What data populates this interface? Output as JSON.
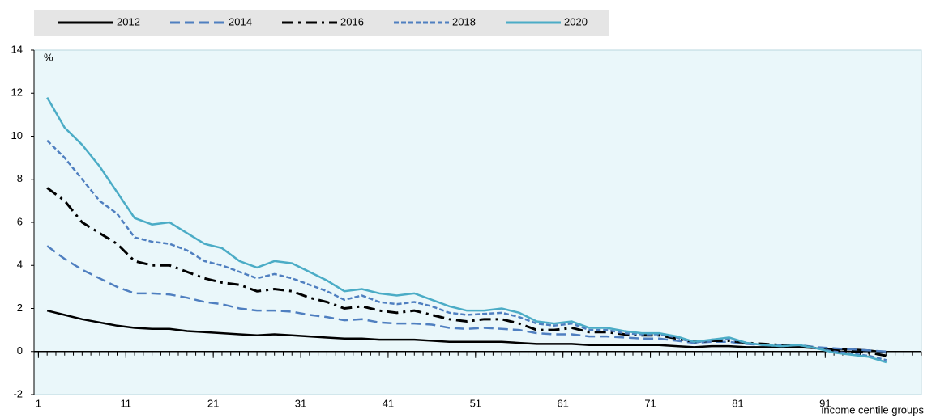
{
  "chart_data": {
    "type": "line",
    "x_label": "income centile groups",
    "y_label": "%",
    "legend": "top-left",
    "grid": false,
    "xlim": [
      0.5,
      102
    ],
    "ylim": [
      -2,
      14
    ],
    "xticks": [
      1,
      11,
      21,
      31,
      41,
      51,
      61,
      71,
      81,
      91
    ],
    "yticks": [
      -2,
      0,
      2,
      4,
      6,
      8,
      10,
      12,
      14
    ],
    "x": [
      2,
      4,
      6,
      8,
      10,
      12,
      14,
      16,
      18,
      20,
      22,
      24,
      26,
      28,
      30,
      32,
      34,
      36,
      38,
      40,
      42,
      44,
      46,
      48,
      50,
      52,
      54,
      56,
      58,
      60,
      62,
      64,
      66,
      68,
      70,
      72,
      74,
      76,
      78,
      80,
      82,
      84,
      86,
      88,
      90,
      92,
      94,
      96,
      98
    ],
    "series": [
      {
        "name": "2012",
        "color": "#000000",
        "dash": "solid",
        "values": [
          1.9,
          1.7,
          1.5,
          1.35,
          1.2,
          1.1,
          1.05,
          1.05,
          0.95,
          0.9,
          0.85,
          0.8,
          0.75,
          0.8,
          0.75,
          0.7,
          0.65,
          0.6,
          0.6,
          0.55,
          0.55,
          0.55,
          0.5,
          0.45,
          0.45,
          0.45,
          0.45,
          0.4,
          0.35,
          0.35,
          0.35,
          0.3,
          0.3,
          0.3,
          0.3,
          0.3,
          0.25,
          0.2,
          0.25,
          0.25,
          0.2,
          0.2,
          0.2,
          0.2,
          0.15,
          0.1,
          0.1,
          0.05,
          -0.05
        ]
      },
      {
        "name": "2014",
        "color": "#4f7fc0",
        "dash": "dashed",
        "values": [
          4.9,
          4.3,
          3.8,
          3.4,
          3.0,
          2.7,
          2.7,
          2.65,
          2.5,
          2.3,
          2.2,
          2.0,
          1.9,
          1.9,
          1.85,
          1.7,
          1.6,
          1.45,
          1.5,
          1.35,
          1.3,
          1.3,
          1.25,
          1.1,
          1.05,
          1.1,
          1.05,
          1.0,
          0.85,
          0.8,
          0.8,
          0.7,
          0.7,
          0.65,
          0.6,
          0.6,
          0.5,
          0.4,
          0.45,
          0.45,
          0.35,
          0.3,
          0.3,
          0.3,
          0.2,
          0.15,
          0.1,
          0.05,
          0.0
        ]
      },
      {
        "name": "2016",
        "color": "#000000",
        "dash": "dashdot",
        "values": [
          7.6,
          7.0,
          6.0,
          5.5,
          5.0,
          4.2,
          4.0,
          4.0,
          3.7,
          3.4,
          3.2,
          3.1,
          2.8,
          2.9,
          2.8,
          2.5,
          2.3,
          2.0,
          2.1,
          1.9,
          1.8,
          1.9,
          1.7,
          1.5,
          1.4,
          1.5,
          1.5,
          1.3,
          1.0,
          1.0,
          1.1,
          0.9,
          0.9,
          0.8,
          0.75,
          0.75,
          0.6,
          0.45,
          0.5,
          0.5,
          0.4,
          0.35,
          0.3,
          0.3,
          0.15,
          0.05,
          0.0,
          -0.05,
          -0.2
        ]
      },
      {
        "name": "2018",
        "color": "#4f7fc0",
        "dash": "dotted",
        "values": [
          9.8,
          9.0,
          8.0,
          7.0,
          6.4,
          5.3,
          5.1,
          5.0,
          4.7,
          4.2,
          4.0,
          3.7,
          3.4,
          3.6,
          3.4,
          3.1,
          2.8,
          2.4,
          2.6,
          2.3,
          2.2,
          2.3,
          2.1,
          1.8,
          1.7,
          1.75,
          1.8,
          1.6,
          1.3,
          1.2,
          1.3,
          1.0,
          1.0,
          0.85,
          0.8,
          0.8,
          0.65,
          0.4,
          0.55,
          0.6,
          0.4,
          0.3,
          0.25,
          0.3,
          0.15,
          0.0,
          -0.1,
          -0.2,
          -0.4
        ]
      },
      {
        "name": "2020",
        "color": "#4bacc6",
        "dash": "solid",
        "values": [
          11.8,
          10.4,
          9.6,
          8.6,
          7.4,
          6.2,
          5.9,
          6.0,
          5.5,
          5.0,
          4.8,
          4.2,
          3.9,
          4.2,
          4.1,
          3.7,
          3.3,
          2.8,
          2.9,
          2.7,
          2.6,
          2.7,
          2.4,
          2.1,
          1.9,
          1.9,
          2.0,
          1.8,
          1.4,
          1.3,
          1.4,
          1.1,
          1.1,
          0.95,
          0.85,
          0.85,
          0.7,
          0.45,
          0.55,
          0.65,
          0.4,
          0.3,
          0.25,
          0.3,
          0.15,
          -0.05,
          -0.15,
          -0.25,
          -0.5
        ]
      }
    ]
  }
}
